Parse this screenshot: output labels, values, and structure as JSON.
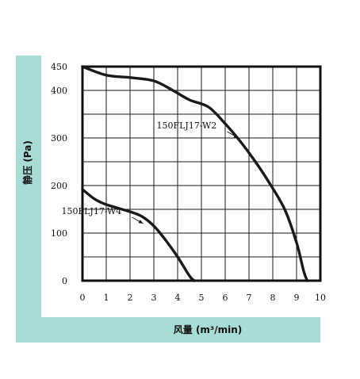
{
  "chart_data": {
    "type": "line",
    "xlabel": "风量 (m³/min)",
    "ylabel": "静压 (Pa)",
    "xlim": [
      0,
      10
    ],
    "ylim": [
      0,
      450
    ],
    "x_ticks": [
      "0",
      "1",
      "2",
      "3",
      "4",
      "5",
      "6",
      "7",
      "8",
      "9",
      "10"
    ],
    "y_ticks": [
      {
        "value": 0,
        "label": "0"
      },
      {
        "value": 100,
        "label": "100"
      },
      {
        "value": 200,
        "label": "200"
      },
      {
        "value": 300,
        "label": "300"
      },
      {
        "value": 400,
        "label": "400"
      },
      {
        "value": 450,
        "label": "450"
      }
    ],
    "grid": true,
    "series": [
      {
        "name": "150FLJ17-W2",
        "points": [
          [
            0,
            450
          ],
          [
            1,
            432
          ],
          [
            2,
            427
          ],
          [
            3,
            420
          ],
          [
            3.8,
            400
          ],
          [
            4.5,
            380
          ],
          [
            5.3,
            365
          ],
          [
            6,
            330
          ],
          [
            6.6,
            295
          ],
          [
            7.2,
            255
          ],
          [
            7.8,
            210
          ],
          [
            8.5,
            150
          ],
          [
            9,
            80
          ],
          [
            9.3,
            20
          ],
          [
            9.45,
            0
          ]
        ]
      },
      {
        "name": "150FLJ17-W4",
        "points": [
          [
            0,
            192
          ],
          [
            0.5,
            172
          ],
          [
            1,
            160
          ],
          [
            2,
            145
          ],
          [
            2.5,
            135
          ],
          [
            3,
            115
          ],
          [
            3.5,
            85
          ],
          [
            4,
            50
          ],
          [
            4.5,
            10
          ],
          [
            4.7,
            0
          ]
        ]
      }
    ],
    "annotations": [
      {
        "text": "150FLJ17-W2",
        "series": "150FLJ17-W2",
        "x": 6.55,
        "y": 300
      },
      {
        "text": "150FLJ17-W4",
        "series": "150FLJ17-W4",
        "x": 2.55,
        "y": 120
      }
    ]
  },
  "colors": {
    "band": "#a8dcd6",
    "ink": "#1a1a1a"
  }
}
